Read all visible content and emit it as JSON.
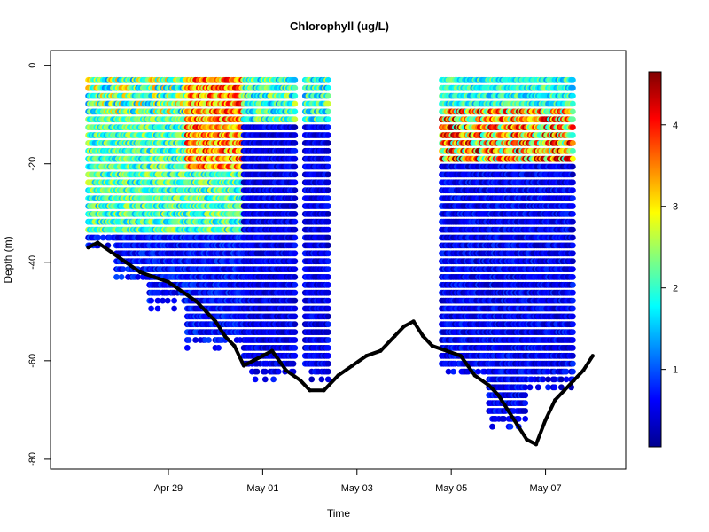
{
  "chart_data": {
    "type": "scatter",
    "title": "Chlorophyll (ug/L)",
    "xlabel": "Time",
    "ylabel": "Depth (m)",
    "x_ticks": [
      "Apr 29",
      "May 01",
      "May 03",
      "May 05",
      "May 07"
    ],
    "y_ticks": [
      "0",
      "-20",
      "-40",
      "-60",
      "-80"
    ],
    "colorbar": {
      "ticks": [
        "1",
        "2",
        "3",
        "4"
      ],
      "range": [
        0.05,
        4.65
      ],
      "colors": [
        "#00008F",
        "#0000FF",
        "#0080FF",
        "#00FFFF",
        "#80FF80",
        "#FFFF00",
        "#FF8000",
        "#FF0000",
        "#800000"
      ]
    },
    "profile_segments": [
      {
        "start_day": 27.3,
        "end_day": 27.9,
        "bottom_depth": -36,
        "surface_depth": -3
      },
      {
        "start_day": 27.9,
        "end_day": 28.6,
        "bottom_depth": -42,
        "surface_depth": -3
      },
      {
        "start_day": 28.6,
        "end_day": 29.4,
        "bottom_depth": -48,
        "surface_depth": -3
      },
      {
        "start_day": 29.4,
        "end_day": 30.6,
        "bottom_depth": -56,
        "surface_depth": -3
      },
      {
        "start_day": 30.6,
        "end_day": 31.7,
        "bottom_depth": -62,
        "surface_depth": -3
      },
      {
        "start_day": 31.9,
        "end_day": 32.4,
        "bottom_depth": -63,
        "surface_depth": -3
      },
      {
        "start_day": 34.8,
        "end_day": 35.8,
        "bottom_depth": -62,
        "surface_depth": -3
      },
      {
        "start_day": 35.8,
        "end_day": 36.6,
        "bottom_depth": -72,
        "surface_depth": -3
      },
      {
        "start_day": 36.6,
        "end_day": 37.6,
        "bottom_depth": -64,
        "surface_depth": -3
      }
    ],
    "bottom_depth_track": {
      "x": [
        27.3,
        27.5,
        27.8,
        28.1,
        28.4,
        28.7,
        29.0,
        29.3,
        29.6,
        29.8,
        30.0,
        30.2,
        30.4,
        30.6,
        30.8,
        31.0,
        31.2,
        31.5,
        31.8,
        32.0,
        32.3,
        32.6,
        32.9,
        33.2,
        33.5,
        33.8,
        34.0,
        34.2,
        34.4,
        34.6,
        34.9,
        35.2,
        35.5,
        35.8,
        36.0,
        36.2,
        36.4,
        36.6,
        36.8,
        37.0,
        37.2,
        37.4,
        37.6,
        37.8,
        38.0
      ],
      "y": [
        -37,
        -36,
        -38,
        -40,
        -42,
        -43,
        -44,
        -46,
        -48,
        -50,
        -52,
        -55,
        -57,
        -61,
        -60,
        -59,
        -58,
        -62,
        -64,
        -66,
        -66,
        -63,
        -61,
        -59,
        -58,
        -55,
        -53,
        -52,
        -55,
        -57,
        -58,
        -59,
        -63,
        -65,
        -67,
        -70,
        -73,
        -76,
        -77,
        -72,
        -68,
        -66,
        -64,
        -62,
        -59
      ]
    }
  }
}
